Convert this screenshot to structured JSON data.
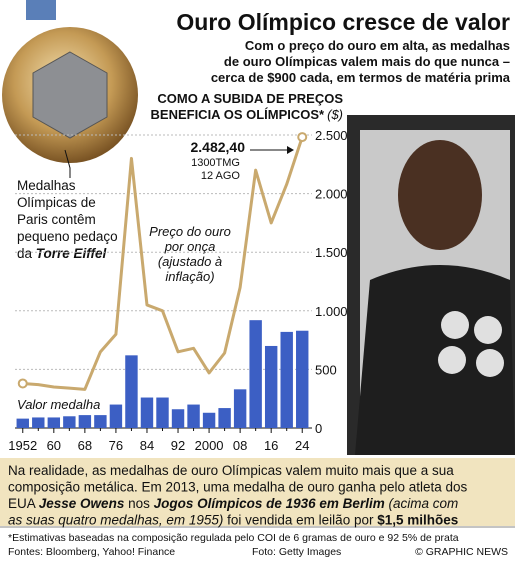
{
  "chart_data": {
    "type": "bar-line",
    "title": "Ouro Olímpico cresce de valor",
    "subtitle": [
      "Com o preço do ouro em alta, as medalhas",
      "de ouro Olímpicas valem mais do que nunca –",
      "cerca de $900 cada, em termos de matéria prima"
    ],
    "heading": [
      "COMO A SUBIDA DE PREÇOS",
      "BENEFICIA OS OLÍMPICOS*",
      "($)"
    ],
    "categories": [
      "1952",
      null,
      "60",
      null,
      "68",
      null,
      "76",
      null,
      "84",
      null,
      "92",
      null,
      "2000",
      null,
      "08",
      null,
      "16",
      null,
      "24"
    ],
    "series": [
      {
        "name": [
          "Valor medalha"
        ],
        "type": "bar",
        "color": "#3c5fc4",
        "values": [
          80,
          90,
          90,
          100,
          110,
          110,
          200,
          620,
          260,
          260,
          160,
          200,
          130,
          170,
          330,
          920,
          700,
          820,
          830
        ]
      },
      {
        "name": [
          "Preço do ouro",
          "por onça",
          "(ajustado à",
          "inflação)"
        ],
        "type": "line",
        "color": "#c9a96e",
        "values": [
          380,
          370,
          350,
          340,
          330,
          650,
          800,
          2300,
          1050,
          1000,
          650,
          680,
          470,
          640,
          1200,
          2200,
          1750,
          2080,
          2482.4
        ]
      }
    ],
    "annotation": [
      "2.482,40",
      "1300TMG",
      "12 AGO"
    ],
    "ylim": [
      0,
      2500
    ],
    "yticks": [
      0,
      500,
      {
        "value": 1000,
        "label": "1.000"
      },
      {
        "value": 1500,
        "label": "1.500"
      },
      {
        "value": 2000,
        "label": "2.000"
      },
      {
        "value": 2500,
        "label": "2.500"
      }
    ],
    "medal_note": [
      [
        {
          "text": "Medalhas"
        }
      ],
      [
        {
          "text": "Olímpicas de"
        }
      ],
      [
        {
          "text": "Paris contêm"
        }
      ],
      [
        {
          "text": "pequeno pedaço"
        }
      ],
      [
        {
          "text": "da "
        },
        {
          "text": "Torre Eiffel",
          "style": "bold-italic"
        }
      ]
    ],
    "box": [
      [
        {
          "text": "Na realidade, as medalhas de ouro Olímpicas valem muito mais que a sua"
        }
      ],
      [
        {
          "text": "composição metálica. Em 2013, uma medalha de ouro ganha pelo atleta dos"
        }
      ],
      [
        {
          "text": "EUA "
        },
        {
          "text": "Jesse Owens",
          "style": "bold-italic"
        },
        {
          "text": " nos "
        },
        {
          "text": "Jogos Olímpicos de 1936 em Berlim",
          "style": "bold-italic"
        },
        {
          "text": " (acima com",
          "style": "italic"
        }
      ],
      [
        {
          "text": "as suas quatro medalhas, em 1955)",
          "style": "italic"
        },
        {
          "text": " foi vendida em leilão por "
        },
        {
          "text": "$1,5 milhões",
          "style": "bold"
        }
      ]
    ],
    "footnote": "*Estimativas baseadas na composição regulada pelo COI de 6 gramas de ouro e 92 5% de prata",
    "sources": "Fontes: Bloomberg, Yahoo! Finance",
    "photo_credit": "Foto: Getty Images",
    "copyright": "© GRAPHIC NEWS"
  }
}
